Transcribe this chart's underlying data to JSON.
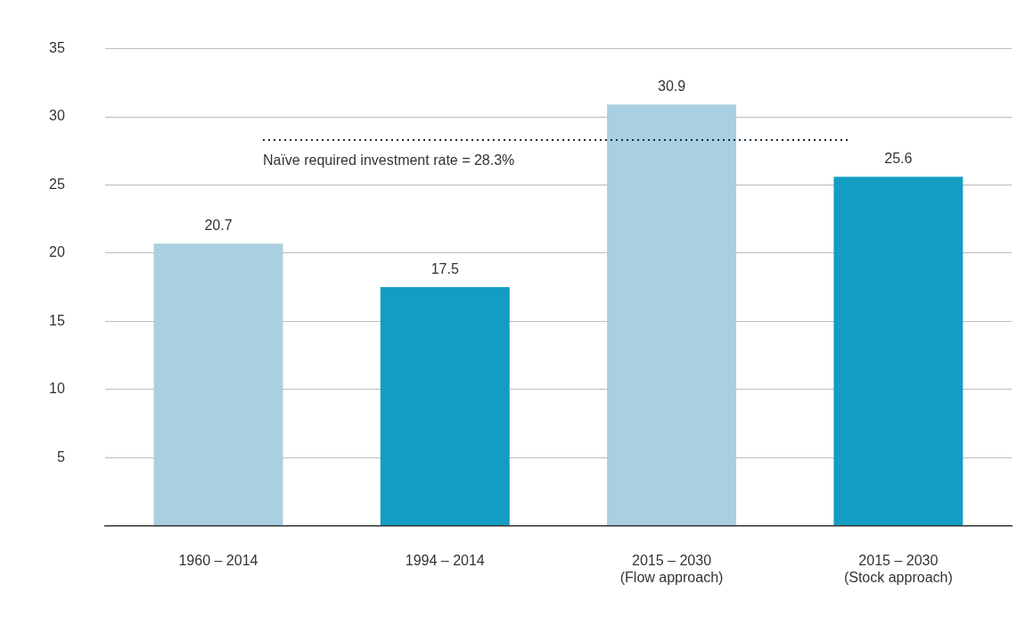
{
  "chart_data": {
    "type": "bar",
    "categories": [
      "1960 – 2014",
      "1994 – 2014",
      "2015 – 2030\n(Flow approach)",
      "2015 – 2030\n(Stock approach)"
    ],
    "values": [
      20.7,
      17.5,
      30.9,
      25.6
    ],
    "colors": [
      "#a9cfe0",
      "#139dc2",
      "#a9cfe0",
      "#139dc2"
    ],
    "ylim": [
      0,
      35
    ],
    "yticks": [
      {
        "value": 0,
        "label": null
      },
      5,
      10,
      15,
      20,
      25,
      30,
      35
    ],
    "grid": "y",
    "legend": false,
    "data_labels": true,
    "ref_lines": [
      {
        "axis": "y",
        "value": 28.3,
        "label": "Naïve required investment rate = 28.3%",
        "line_style": "dotted",
        "color": "#1a2a3a"
      }
    ]
  }
}
